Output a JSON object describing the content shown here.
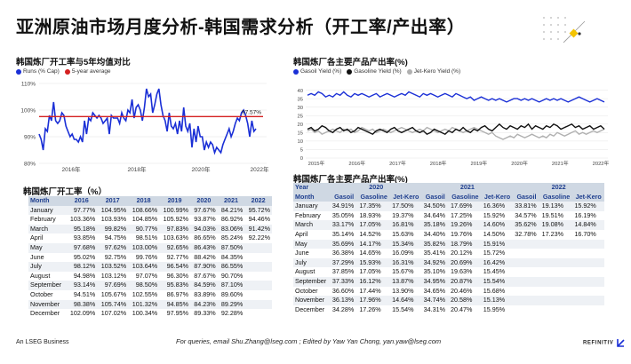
{
  "page": {
    "title": "亚洲原油市场月度分析-韩国需求分析（开工率/产出率）",
    "footer_left": "An LSEG Business",
    "footer_middle": "For queries, email Shu.Zhang@lseg.com ; Edited by Yaw Yan Chong, yan.yaw@lseg.com",
    "footer_brand": "REFINITIV"
  },
  "chart_data": [
    {
      "type": "line",
      "title": "韩国炼厂开工率与5年均值对比",
      "yticks": [
        "110%",
        "100%",
        "90%",
        "80%"
      ],
      "ylim": [
        80,
        110
      ],
      "xticks": [
        "2016年",
        "2018年",
        "2020年",
        "2022年"
      ],
      "annotation": "97.57%",
      "series": [
        {
          "name": "Runs (% Cap)",
          "color": "#1a2fd6",
          "values": [
            91,
            89,
            85,
            93,
            92,
            98,
            96,
            103,
            96,
            95,
            96,
            99,
            98,
            94,
            92,
            90,
            91,
            89,
            89,
            88,
            90,
            88,
            96,
            91,
            97,
            96,
            99,
            98,
            97,
            98,
            97,
            95,
            96,
            97,
            91,
            98,
            97,
            97,
            97,
            95,
            99,
            97,
            96,
            100,
            99,
            104,
            97,
            101,
            102,
            100,
            96,
            101,
            108,
            105,
            106,
            99,
            102,
            106,
            108,
            102,
            98,
            96,
            92,
            99,
            94,
            93,
            95,
            91,
            96,
            92,
            101,
            94,
            92,
            95,
            86,
            93,
            88,
            94,
            90,
            90,
            85,
            88,
            86,
            88,
            87,
            84,
            86,
            85,
            84,
            87,
            89,
            91,
            93,
            90,
            92,
            95,
            97,
            96,
            99,
            100,
            98,
            95,
            90,
            96,
            92,
            93
          ]
        },
        {
          "name": "5-year average",
          "color": "#d42020",
          "values": [
            97.57,
            97.57
          ]
        }
      ]
    },
    {
      "type": "line",
      "title": "韩国炼厂各主要产品产出率(%)",
      "xticks": [
        "2015年",
        "2016年",
        "2017年",
        "2018年",
        "2019年",
        "2020年",
        "2021年",
        "2022年"
      ],
      "ylim": [
        0,
        45
      ],
      "yticks": [
        "40",
        "35",
        "30",
        "25",
        "20",
        "15",
        "10",
        "5",
        "0"
      ],
      "series": [
        {
          "name": "Gasoil Yield (%)",
          "color": "#1a2fd6",
          "values": [
            37,
            38,
            37,
            39,
            38,
            36,
            37,
            36,
            38,
            37,
            39,
            37,
            36,
            38,
            37,
            38,
            37,
            36,
            37,
            38,
            36,
            37,
            38,
            37,
            36,
            37,
            38,
            37,
            39,
            38,
            37,
            36,
            38,
            37,
            38,
            37,
            36,
            37,
            38,
            37,
            36,
            38,
            37,
            36,
            35,
            36,
            34,
            35,
            36,
            35,
            34,
            35,
            34,
            35,
            34,
            33,
            34,
            35,
            35,
            34,
            35,
            34,
            35,
            34,
            33,
            34,
            35,
            34,
            35,
            34,
            35,
            34,
            33,
            34,
            35,
            36,
            35,
            34,
            33,
            34,
            35,
            34,
            33
          ]
        },
        {
          "name": "Gasoline Yield (%)",
          "color": "#111111",
          "values": [
            17,
            18,
            16,
            17,
            19,
            18,
            16,
            15,
            17,
            18,
            16,
            17,
            15,
            16,
            18,
            17,
            16,
            15,
            14,
            16,
            17,
            16,
            15,
            17,
            18,
            16,
            15,
            16,
            17,
            18,
            16,
            15,
            16,
            14,
            15,
            17,
            16,
            15,
            14,
            16,
            15,
            17,
            16,
            18,
            16,
            15,
            17,
            16,
            18,
            19,
            17,
            16,
            18,
            20,
            18,
            17,
            19,
            18,
            17,
            19,
            18,
            20,
            17,
            19,
            18,
            17,
            19,
            18,
            20,
            19,
            17,
            18,
            19,
            20,
            18,
            19,
            17,
            18,
            19,
            17,
            18,
            19,
            17
          ]
        },
        {
          "name": "Jet-Kero Yield (%)",
          "color": "#b0b0b0",
          "values": [
            16,
            17,
            15,
            16,
            14,
            15,
            16,
            17,
            16,
            15,
            17,
            16,
            17,
            15,
            16,
            18,
            17,
            16,
            17,
            15,
            16,
            17,
            16,
            15,
            16,
            17,
            18,
            17,
            16,
            15,
            16,
            17,
            16,
            18,
            17,
            16,
            15,
            16,
            17,
            16,
            18,
            17,
            16,
            15,
            16,
            17,
            18,
            17,
            16,
            15,
            14,
            15,
            13,
            12,
            11,
            12,
            13,
            12,
            14,
            13,
            12,
            13,
            14,
            13,
            12,
            13,
            12,
            14,
            13,
            15,
            14,
            13,
            14,
            15,
            16,
            14,
            15,
            14,
            15,
            16,
            15,
            16,
            17
          ]
        }
      ]
    }
  ],
  "table_left": {
    "title": "韩国炼厂开工率（%）",
    "headers": [
      "Month",
      "2016",
      "2017",
      "2018",
      "2019",
      "2020",
      "2021",
      "2022"
    ],
    "rows": [
      [
        "January",
        "97.77%",
        "104.95%",
        "108.66%",
        "100.99%",
        "97.67%",
        "84.21%",
        "95.72%"
      ],
      [
        "February",
        "103.36%",
        "103.93%",
        "104.85%",
        "105.92%",
        "93.87%",
        "86.92%",
        "94.46%"
      ],
      [
        "March",
        "95.18%",
        "99.82%",
        "90.77%",
        "97.83%",
        "94.03%",
        "83.06%",
        "91.42%"
      ],
      [
        "April",
        "93.85%",
        "94.75%",
        "98.51%",
        "103.63%",
        "86.65%",
        "85.24%",
        "92.22%"
      ],
      [
        "May",
        "97.68%",
        "97.62%",
        "103.00%",
        "92.65%",
        "86.43%",
        "87.50%",
        ""
      ],
      [
        "June",
        "95.02%",
        "92.75%",
        "99.76%",
        "92.77%",
        "88.42%",
        "84.35%",
        ""
      ],
      [
        "July",
        "98.12%",
        "103.52%",
        "103.64%",
        "96.54%",
        "87.90%",
        "86.55%",
        ""
      ],
      [
        "August",
        "94.98%",
        "103.12%",
        "97.07%",
        "96.30%",
        "87.67%",
        "90.70%",
        ""
      ],
      [
        "September",
        "93.14%",
        "97.69%",
        "98.50%",
        "95.83%",
        "84.59%",
        "87.10%",
        ""
      ],
      [
        "October",
        "94.51%",
        "105.67%",
        "102.55%",
        "86.97%",
        "83.89%",
        "89.60%",
        ""
      ],
      [
        "November",
        "98.38%",
        "105.74%",
        "101.32%",
        "94.85%",
        "84.23%",
        "89.29%",
        ""
      ],
      [
        "December",
        "102.09%",
        "107.02%",
        "100.34%",
        "97.95%",
        "89.33%",
        "92.28%",
        ""
      ]
    ]
  },
  "table_right": {
    "title": "韩国炼厂各主要产品产出率(%)",
    "year_label": "Year",
    "month_label": "Month",
    "years": [
      "2020",
      "2021",
      "2022"
    ],
    "products": [
      "Gasoil",
      "Gasoline",
      "Jet-Kero",
      "Gasoil",
      "Gasoline",
      "Jet-Kero",
      "Gasoil",
      "Gasoline",
      "Jet-Kero"
    ],
    "rows": [
      [
        "January",
        "34.91%",
        "17.35%",
        "17.50%",
        "34.50%",
        "17.69%",
        "16.36%",
        "33.81%",
        "19.13%",
        "15.92%"
      ],
      [
        "February",
        "35.05%",
        "18.93%",
        "19.37%",
        "34.64%",
        "17.25%",
        "15.92%",
        "34.57%",
        "19.51%",
        "16.19%"
      ],
      [
        "March",
        "33.17%",
        "17.05%",
        "16.81%",
        "35.18%",
        "19.26%",
        "14.60%",
        "35.62%",
        "19.08%",
        "14.84%"
      ],
      [
        "April",
        "35.14%",
        "14.52%",
        "15.63%",
        "34.40%",
        "19.76%",
        "14.50%",
        "32.78%",
        "17.23%",
        "16.70%"
      ],
      [
        "May",
        "35.69%",
        "14.17%",
        "15.34%",
        "35.82%",
        "18.79%",
        "15.91%",
        "",
        "",
        ""
      ],
      [
        "June",
        "36.38%",
        "14.65%",
        "16.09%",
        "35.41%",
        "20.12%",
        "15.72%",
        "",
        "",
        ""
      ],
      [
        "July",
        "37.29%",
        "15.93%",
        "16.31%",
        "34.92%",
        "20.69%",
        "16.42%",
        "",
        "",
        ""
      ],
      [
        "August",
        "37.85%",
        "17.05%",
        "15.67%",
        "35.10%",
        "19.63%",
        "15.45%",
        "",
        "",
        ""
      ],
      [
        "September",
        "37.33%",
        "16.12%",
        "13.87%",
        "34.95%",
        "20.87%",
        "15.54%",
        "",
        "",
        ""
      ],
      [
        "October",
        "36.60%",
        "17.44%",
        "13.90%",
        "34.65%",
        "20.46%",
        "15.68%",
        "",
        "",
        ""
      ],
      [
        "November",
        "36.13%",
        "17.96%",
        "14.64%",
        "34.74%",
        "20.58%",
        "15.13%",
        "",
        "",
        ""
      ],
      [
        "December",
        "34.28%",
        "17.26%",
        "15.54%",
        "34.31%",
        "20.47%",
        "15.95%",
        "",
        "",
        ""
      ]
    ]
  }
}
